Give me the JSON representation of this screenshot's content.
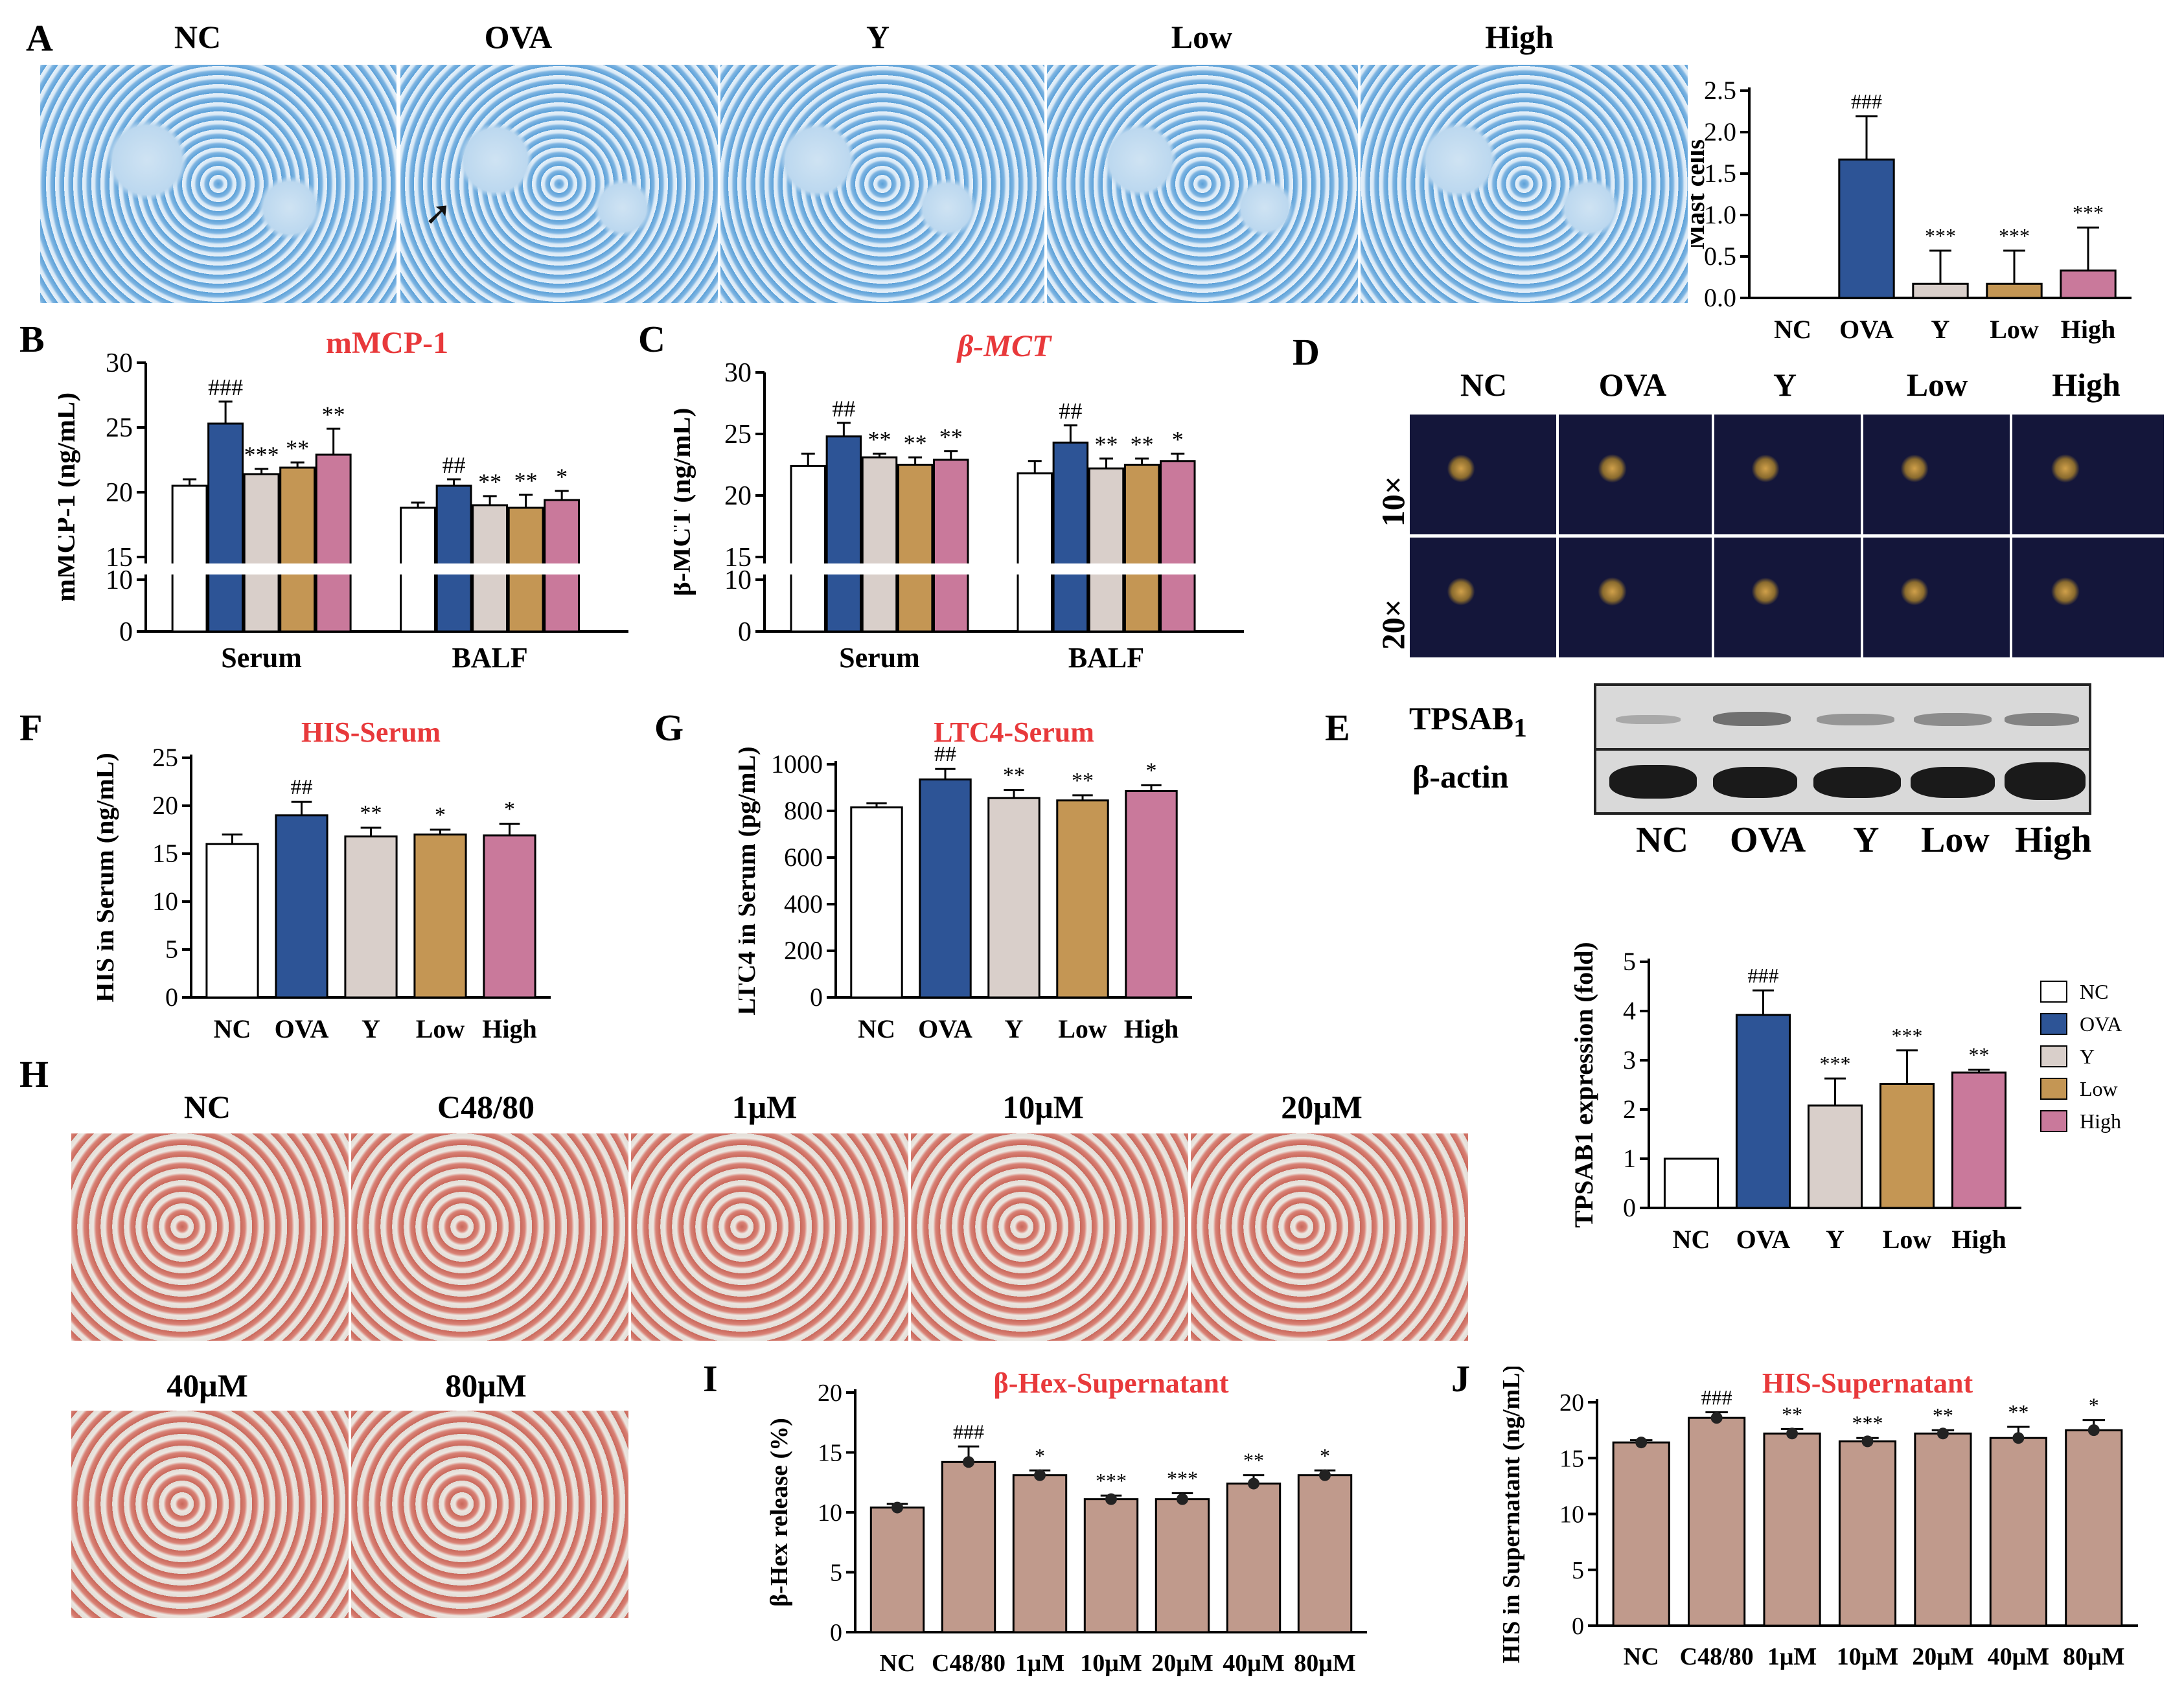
{
  "panels": {
    "A": "A",
    "B": "B",
    "C": "C",
    "D": "D",
    "E": "E",
    "F": "F",
    "G": "G",
    "H": "H",
    "I": "I",
    "J": "J"
  },
  "panel_a": {
    "images": [
      "NC",
      "OVA",
      "Y",
      "Low",
      "High"
    ]
  },
  "panel_d": {
    "columns": [
      "NC",
      "OVA",
      "Y",
      "Low",
      "High"
    ],
    "rows": [
      "10×",
      "20×"
    ]
  },
  "panel_e_blot": {
    "rows": [
      "TPSAB1",
      "β-actin"
    ],
    "lanes": [
      "NC",
      "OVA",
      "Y",
      "Low",
      "High"
    ]
  },
  "panel_h": {
    "images": [
      "NC",
      "C48/80",
      "1μM",
      "10μM",
      "20μM",
      "40μM",
      "80μM"
    ]
  },
  "colors": {
    "NC": "#ffffff",
    "OVA": "#2d5496",
    "Y": "#d9cfca",
    "Low": "#c49654",
    "High": "#c9799b",
    "cell": "#c09a8c",
    "title": "#e8393b"
  },
  "chart_data": [
    {
      "id": "A-chart",
      "type": "bar",
      "title": "",
      "categories": [
        "NC",
        "OVA",
        "Y",
        "Low",
        "High"
      ],
      "values": [
        0,
        1.67,
        0.17,
        0.17,
        0.33
      ],
      "errors": [
        0,
        0.52,
        0.4,
        0.4,
        0.52
      ],
      "sig": [
        "",
        "###",
        "***",
        "***",
        "***"
      ],
      "ylabel": "Mast cells",
      "ylim": [
        0,
        2.5
      ],
      "yticks": [
        "0.0",
        "0.5",
        "1.0",
        "1.5",
        "2.0",
        "2.5"
      ]
    },
    {
      "id": "B-chart",
      "type": "bar",
      "title": "mMCP-1",
      "groups": [
        "Serum",
        "BALF"
      ],
      "series_names": [
        "NC",
        "OVA",
        "Y",
        "Low",
        "High"
      ],
      "values": [
        [
          20.5,
          25.3,
          21.4,
          21.9,
          22.9
        ],
        [
          18.8,
          20.5,
          19.0,
          18.8,
          19.4
        ]
      ],
      "errors": [
        [
          0.5,
          1.7,
          0.4,
          0.4,
          2.0
        ],
        [
          0.4,
          0.5,
          0.7,
          1.0,
          0.7
        ]
      ],
      "sig": [
        [
          "",
          "###",
          "***",
          "**",
          "**"
        ],
        [
          "",
          "##",
          "**",
          "**",
          "*"
        ]
      ],
      "ylabel": "mMCP-1 (ng/mL)",
      "yticks": [
        "0",
        "10",
        "15",
        "20",
        "25",
        "30"
      ]
    },
    {
      "id": "C-chart",
      "type": "bar",
      "title": "β-MCT",
      "groups": [
        "Serum",
        "BALF"
      ],
      "series_names": [
        "NC",
        "OVA",
        "Y",
        "Low",
        "High"
      ],
      "values": [
        [
          22.4,
          24.8,
          23.1,
          22.5,
          22.9
        ],
        [
          21.8,
          24.3,
          22.2,
          22.5,
          22.8
        ]
      ],
      "errors": [
        [
          1.0,
          1.1,
          0.3,
          0.6,
          0.7
        ],
        [
          1.0,
          1.4,
          0.8,
          0.5,
          0.6
        ]
      ],
      "sig": [
        [
          "",
          "##",
          "**",
          "**",
          "**"
        ],
        [
          "",
          "##",
          "**",
          "**",
          "*"
        ]
      ],
      "ylabel": "β-MCT (ng/mL)",
      "yticks": [
        "0",
        "10",
        "15",
        "20",
        "25",
        "30"
      ]
    },
    {
      "id": "F-chart",
      "type": "bar",
      "title": "HIS-Serum",
      "categories": [
        "NC",
        "OVA",
        "Y",
        "Low",
        "High"
      ],
      "values": [
        16.0,
        19.0,
        16.8,
        17.0,
        16.9
      ],
      "errors": [
        1.0,
        1.4,
        0.9,
        0.5,
        1.2
      ],
      "sig": [
        "",
        "##",
        "**",
        "*",
        "*"
      ],
      "ylabel": "HIS in Serum (ng/mL)",
      "ylim": [
        0,
        25
      ],
      "yticks": [
        "0",
        "5",
        "10",
        "15",
        "20",
        "25"
      ]
    },
    {
      "id": "G-chart",
      "type": "bar",
      "title": "LTC4-Serum",
      "categories": [
        "NC",
        "OVA",
        "Y",
        "Low",
        "High"
      ],
      "values": [
        815,
        935,
        855,
        845,
        885
      ],
      "errors": [
        18,
        45,
        35,
        22,
        25
      ],
      "sig": [
        "",
        "##",
        "**",
        "**",
        "*"
      ],
      "ylabel": "LTC4 in Serum (pg/mL)",
      "ylim": [
        0,
        1000
      ],
      "yticks": [
        "0",
        "200",
        "400",
        "600",
        "800",
        "1000"
      ]
    },
    {
      "id": "E-chart",
      "type": "bar",
      "title": "",
      "categories": [
        "NC",
        "OVA",
        "Y",
        "Low",
        "High"
      ],
      "values": [
        1.0,
        3.92,
        2.08,
        2.52,
        2.75
      ],
      "errors": [
        0,
        0.5,
        0.55,
        0.68,
        0.06
      ],
      "sig": [
        "",
        "###",
        "***",
        "***",
        "**"
      ],
      "ylabel": "TPSAB1 expression (fold)",
      "ylim": [
        0,
        5
      ],
      "yticks": [
        "0",
        "1",
        "2",
        "3",
        "4",
        "5"
      ],
      "legend": [
        "NC",
        "OVA",
        "Y",
        "Low",
        "High"
      ]
    },
    {
      "id": "I-chart",
      "type": "bar",
      "title": "β-Hex-Supernatant",
      "categories": [
        "NC",
        "C48/80",
        "1μM",
        "10μM",
        "20μM",
        "40μM",
        "80μM"
      ],
      "values": [
        10.4,
        14.2,
        13.1,
        11.1,
        11.1,
        12.4,
        13.1
      ],
      "errors": [
        0.3,
        1.3,
        0.4,
        0.3,
        0.5,
        0.7,
        0.4
      ],
      "sig": [
        "",
        "###",
        "*",
        "***",
        "***",
        "**",
        "*"
      ],
      "ylabel": "β-Hex release (%)",
      "ylim": [
        0,
        20
      ],
      "yticks": [
        "0",
        "5",
        "10",
        "15",
        "20"
      ]
    },
    {
      "id": "J-chart",
      "type": "bar",
      "title": "HIS-Supernatant",
      "categories": [
        "NC",
        "C48/80",
        "1μM",
        "10μM",
        "20μM",
        "40μM",
        "80μM"
      ],
      "values": [
        16.4,
        18.6,
        17.2,
        16.5,
        17.2,
        16.8,
        17.5
      ],
      "errors": [
        0.2,
        0.5,
        0.4,
        0.3,
        0.3,
        1.0,
        0.9
      ],
      "sig": [
        "",
        "###",
        "**",
        "***",
        "**",
        "**",
        "*"
      ],
      "ylabel": "HIS in Supernatant (ng/mL)",
      "ylim": [
        0,
        20
      ],
      "yticks": [
        "0",
        "5",
        "10",
        "15",
        "20"
      ]
    }
  ]
}
